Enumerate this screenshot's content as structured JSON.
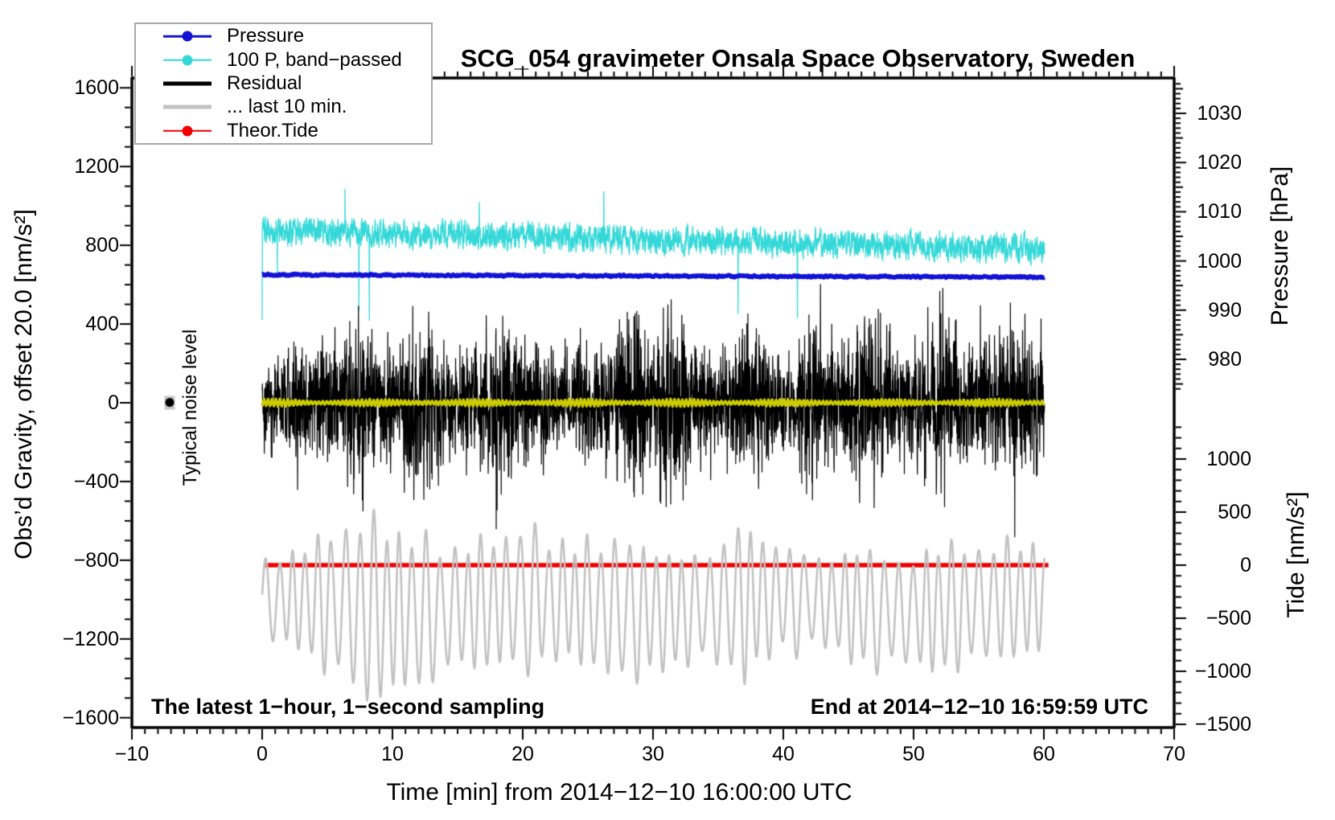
{
  "chart_data": {
    "type": "line",
    "title": "SCG_054 gravimeter Onsala Space Observatory, Sweden",
    "xlabel": "Time [min] from 2014−12−10 16:00:00 UTC",
    "ylabel_left": "Obs’d Gravity, offset 20.0 [nm/s²]",
    "ylabel_pressure": "Pressure [hPa]",
    "ylabel_tide": "Tide [nm/s²]",
    "annotations": {
      "sampling_note": "The latest 1−hour, 1−second sampling",
      "end_note": "End at 2014−12−10 16:59:59 UTC",
      "noise_label": "Typical noise level",
      "noise_marker": {
        "x_min": -7.1,
        "gravity_value": 0,
        "bar_halfwidth_units": 35,
        "bar_color": "#c8c8c8",
        "dot_color": "#000000"
      }
    },
    "axes": {
      "x": {
        "unit": "min",
        "range": [
          -10,
          70
        ],
        "major_step": 10,
        "minor_step": 1,
        "data_range": [
          0,
          60.3
        ],
        "grid": false
      },
      "gravity": {
        "unit": "nm/s2",
        "range": [
          -1650,
          1650
        ],
        "label_ticks": [
          -1600,
          -1200,
          -800,
          -400,
          0,
          400,
          800,
          1200,
          1600
        ],
        "minor_step": 100
      },
      "pressure": {
        "unit": "hPa",
        "label_ticks": [
          980,
          990,
          1000,
          1010,
          1020,
          1030
        ],
        "minor_step": 1,
        "minor_range": [
          974,
          1037
        ]
      },
      "tide": {
        "unit": "nm/s2",
        "label_ticks": [
          -1500,
          -1000,
          -500,
          0,
          500,
          1000
        ],
        "minor_step": 100,
        "minor_range": [
          -1500,
          1300
        ]
      }
    },
    "legend": {
      "position": "top-left",
      "items": [
        {
          "label": "Pressure",
          "color": "#1212d6",
          "marker": "dot-line"
        },
        {
          "label": "100 P, band−passed",
          "color": "#35d8d8",
          "marker": "dot-line"
        },
        {
          "label": "Residual",
          "color": "#000000",
          "marker": "thick-line"
        },
        {
          "label": "... last 10 min.",
          "color": "#c2c2c2",
          "marker": "thick-line"
        },
        {
          "label": "Theor.Tide",
          "color": "#f00000",
          "marker": "dot-line"
        }
      ]
    },
    "series": [
      {
        "name": "100 P, band−passed",
        "axis": "gravity",
        "color": "#35d8d8",
        "line_width": 1.3,
        "seed": 7,
        "model": {
          "kind": "noise",
          "points": 3600,
          "center_start": 875,
          "center_end": 780,
          "sigma": 62,
          "spike_rate": 0.0022,
          "spike_down_max": 430
        },
        "summary": "Band-passed pressure (x100), noisy band centered near +850 gravity units, slowly declining, occasional spikes down to ~+450"
      },
      {
        "name": "Pressure",
        "axis": "pressure",
        "color": "#1212d6",
        "line_width": 5.5,
        "seed": 11,
        "model": {
          "kind": "flat-pressure",
          "points": 1500,
          "start_hPa": 997.2,
          "end_hPa": 996.7,
          "jitter_hPa": 0.22
        },
        "summary": "Barometric pressure nearly constant at about 997 hPa for the whole hour"
      },
      {
        "name": "Residual",
        "axis": "gravity",
        "color": "#000000",
        "line_width": 1.2,
        "seed": 3,
        "model": {
          "kind": "burst-noise",
          "points": 3600,
          "center": 0,
          "envelope": [
            [
              0,
              210
            ],
            [
              2,
              260
            ],
            [
              4,
              300
            ],
            [
              6,
              310
            ],
            [
              7,
              430
            ],
            [
              7.7,
              470
            ],
            [
              8,
              390
            ],
            [
              9,
              270
            ],
            [
              10,
              310
            ],
            [
              11,
              350
            ],
            [
              12,
              460
            ],
            [
              13,
              430
            ],
            [
              14,
              290
            ],
            [
              15,
              270
            ],
            [
              16,
              300
            ],
            [
              17,
              340
            ],
            [
              18,
              420
            ],
            [
              19,
              440
            ],
            [
              20,
              350
            ],
            [
              21,
              290
            ],
            [
              22,
              310
            ],
            [
              23,
              280
            ],
            [
              24,
              270
            ],
            [
              25,
              290
            ],
            [
              26,
              300
            ],
            [
              27,
              330
            ],
            [
              28,
              470
            ],
            [
              29,
              510
            ],
            [
              30,
              290
            ],
            [
              31,
              490
            ],
            [
              32,
              530
            ],
            [
              33,
              330
            ],
            [
              34,
              250
            ],
            [
              35,
              230
            ],
            [
              36,
              270
            ],
            [
              37,
              390
            ],
            [
              38,
              410
            ],
            [
              39,
              290
            ],
            [
              40,
              270
            ],
            [
              41,
              310
            ],
            [
              42,
              450
            ],
            [
              43,
              330
            ],
            [
              44,
              290
            ],
            [
              45,
              330
            ],
            [
              46,
              410
            ],
            [
              47,
              430
            ],
            [
              48,
              350
            ],
            [
              49,
              290
            ],
            [
              50,
              310
            ],
            [
              51,
              350
            ],
            [
              52,
              470
            ],
            [
              53,
              390
            ],
            [
              54,
              310
            ],
            [
              55,
              290
            ],
            [
              56,
              330
            ],
            [
              57,
              370
            ],
            [
              58,
              390
            ],
            [
              59,
              350
            ],
            [
              60,
              330
            ]
          ]
        },
        "summary": "Gravity residual centered on 0, bursts of microseismic noise up to about ±700 nm/s²"
      },
      {
        "name": "Residual band−passed (yellow)",
        "axis": "gravity",
        "color": "#cccc00",
        "line_width": 3.4,
        "seed": 5,
        "model": {
          "kind": "zigzag",
          "points": 2400,
          "center": 0,
          "amplitude": 18,
          "period_min": 0.3
        },
        "summary": "Small-amplitude filtered residual oscillating tightly around 0"
      },
      {
        "name": "Theor.Tide",
        "axis": "tide",
        "color": "#f00000",
        "line_width": 5.5,
        "seed": 1,
        "model": {
          "kind": "flat-tide",
          "value": 0,
          "x_start": 0.25,
          "x_end": 60.35
        },
        "summary": "Theoretical tide essentially 0 nm/s² (flat red line) during this hour"
      },
      {
        "name": "... last 10 min.",
        "axis": "tide",
        "color": "#c2c2c2",
        "line_width": 2.6,
        "seed": 9,
        "model": {
          "kind": "am-wave",
          "points": 2400,
          "center": -380,
          "center_wobble": 60,
          "period_min": 1.04,
          "envelope": [
            [
              0,
              350
            ],
            [
              2,
              400
            ],
            [
              3,
              450
            ],
            [
              4,
              550
            ],
            [
              5,
              650
            ],
            [
              6,
              600
            ],
            [
              7,
              700
            ],
            [
              8,
              870
            ],
            [
              9,
              820
            ],
            [
              10,
              700
            ],
            [
              11,
              650
            ],
            [
              12,
              700
            ],
            [
              13,
              680
            ],
            [
              14,
              500
            ],
            [
              15,
              520
            ],
            [
              16,
              560
            ],
            [
              17,
              600
            ],
            [
              18,
              580
            ],
            [
              19,
              520
            ],
            [
              20,
              700
            ],
            [
              21,
              650
            ],
            [
              22,
              500
            ],
            [
              23,
              550
            ],
            [
              24,
              500
            ],
            [
              25,
              600
            ],
            [
              26,
              550
            ],
            [
              27,
              600
            ],
            [
              28,
              650
            ],
            [
              29,
              600
            ],
            [
              30,
              550
            ],
            [
              31,
              500
            ],
            [
              32,
              520
            ],
            [
              33,
              480
            ],
            [
              34,
              450
            ],
            [
              35,
              500
            ],
            [
              36,
              650
            ],
            [
              37,
              700
            ],
            [
              38,
              600
            ],
            [
              39,
              500
            ],
            [
              40,
              450
            ],
            [
              41,
              500
            ],
            [
              42,
              400
            ],
            [
              43,
              380
            ],
            [
              44,
              420
            ],
            [
              45,
              480
            ],
            [
              46,
              520
            ],
            [
              47,
              560
            ],
            [
              48,
              480
            ],
            [
              49,
              420
            ],
            [
              50,
              480
            ],
            [
              51,
              520
            ],
            [
              52,
              560
            ],
            [
              53,
              600
            ],
            [
              54,
              520
            ],
            [
              55,
              460
            ],
            [
              56,
              500
            ],
            [
              57,
              550
            ],
            [
              58,
              520
            ],
            [
              59,
              480
            ],
            [
              60,
              450
            ]
          ]
        },
        "summary": "Raw gravity of the last 10 minutes (amplitude-modulated ~1 min microseism wave around tide ≈ −400 nm/s²)"
      }
    ]
  }
}
